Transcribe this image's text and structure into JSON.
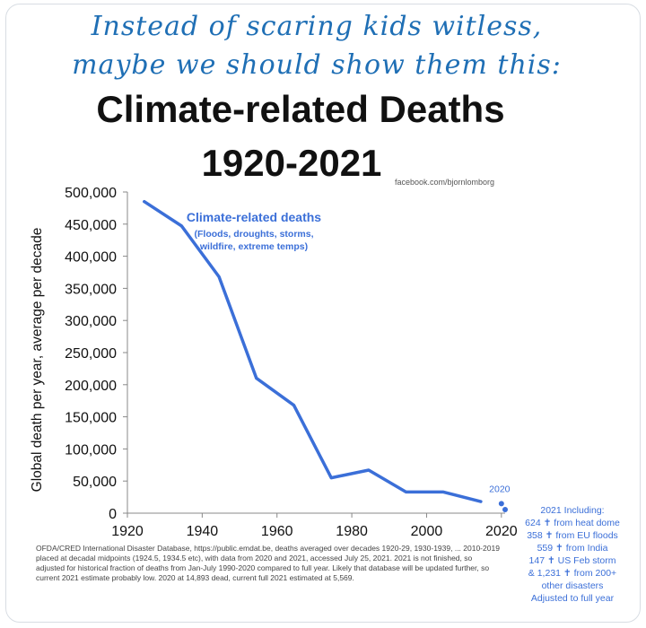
{
  "header": {
    "line1": "Instead of scaring kids witless,",
    "line2": "maybe we should show them this:"
  },
  "chart_data": {
    "type": "line",
    "title": "Climate-related Deaths",
    "subtitle": "1920-2021",
    "credit": "facebook.com/bjornlomborg",
    "ylabel": "Global death per year, average per decade",
    "xlabel": "",
    "xlim": [
      1920,
      2021
    ],
    "ylim": [
      0,
      500000
    ],
    "x_ticks": [
      1920,
      1940,
      1960,
      1980,
      2000,
      2020
    ],
    "y_ticks": [
      0,
      50000,
      100000,
      150000,
      200000,
      250000,
      300000,
      350000,
      400000,
      450000,
      500000
    ],
    "y_tick_labels": [
      "0",
      "50,000",
      "100,000",
      "150,000",
      "200,000",
      "250,000",
      "300,000",
      "350,000",
      "400,000",
      "450,000",
      "500,000"
    ],
    "color": "#3b6fd8",
    "series": [
      {
        "name": "Climate-related deaths",
        "x": [
          1924.5,
          1934.5,
          1944.5,
          1954.5,
          1964.5,
          1974.5,
          1984.5,
          1994.5,
          2004.5,
          2014.5
        ],
        "values": [
          485000,
          447000,
          368000,
          210000,
          168000,
          55000,
          67000,
          33000,
          33000,
          18000
        ]
      }
    ],
    "points": [
      {
        "label": "2020",
        "x": 2020,
        "y": 14893
      },
      {
        "label": "",
        "x": 2021,
        "y": 5569
      }
    ],
    "series_annotation": {
      "name": "Climate-related deaths",
      "detail_lines": [
        "(Floods, droughts, storms,",
        "wildfire, extreme temps)"
      ]
    },
    "side_note": [
      "2021 Including:",
      "624 ✝ from heat dome",
      "358 ✝ from EU floods",
      "559 ✝ from India",
      "147 ✝ US Feb storm",
      "& 1,231 ✝ from 200+",
      "other disasters",
      "Adjusted to full year"
    ],
    "footnote": "OFDA/CRED International Disaster Database, https://public.emdat.be, deaths averaged over decades 1920-29, 1930-1939, ... 2010-2019 placed at decadal midpoints (1924.5, 1934.5 etc), with data from 2020 and 2021, accessed July 25, 2021. 2021 is not finished, so adjusted for historical fraction of deaths from Jan-July 1990-2020 compared to full year. Likely that database will be updated further, so current 2021 estimate probably low. 2020 at 14,893 dead, current full 2021 estimated at 5,569."
  }
}
